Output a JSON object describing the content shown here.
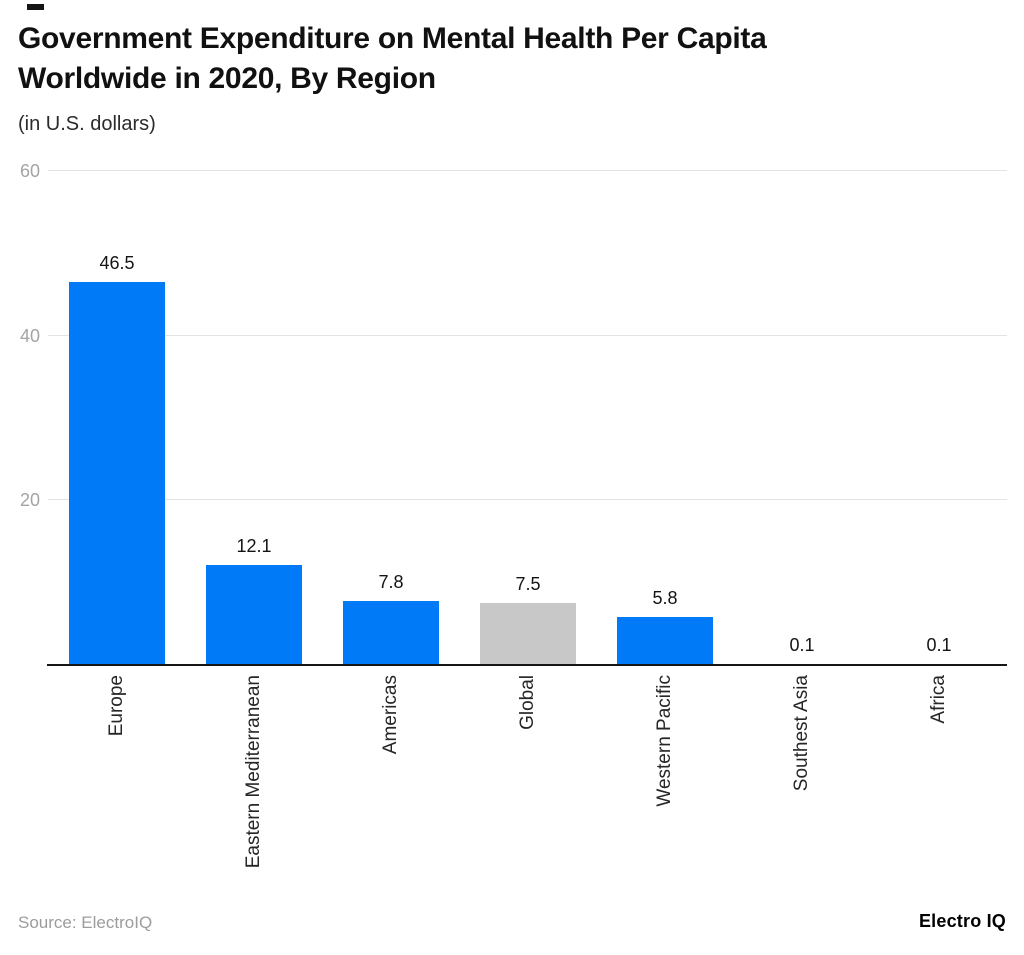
{
  "header": {
    "title_line1": "Government Expenditure on Mental Health Per Capita",
    "title_line2": "Worldwide in 2020, By Region",
    "subtitle": "(in U.S. dollars)"
  },
  "chart_data": {
    "type": "bar",
    "title": "Government Expenditure on Mental Health Per Capita Worldwide in 2020, By Region",
    "subtitle": "(in U.S. dollars)",
    "categories": [
      "Europe",
      "Eastern Mediterranean",
      "Americas",
      "Global",
      "Western Pacific",
      "Southest Asia",
      "Africa"
    ],
    "values": [
      46.5,
      12.1,
      7.8,
      7.5,
      5.8,
      0.1,
      0.1
    ],
    "value_labels": [
      "46.5",
      "12.1",
      "7.8",
      "7.5",
      "5.8",
      "0.1",
      "0.1"
    ],
    "bar_colors": [
      "#007af7",
      "#007af7",
      "#007af7",
      "#c8c8c8",
      "#007af7",
      "#007af7",
      "#007af7"
    ],
    "xlabel": "",
    "ylabel": "",
    "y_ticks": [
      20,
      40,
      60
    ],
    "ylim": [
      0,
      60
    ],
    "grid": "horizontal",
    "legend": "none",
    "x_label_orientation": "vertical-bottom-to-top"
  },
  "colors": {
    "bar_blue": "#007af7",
    "bar_gray": "#c8c8c8",
    "gridline": "#e3e3e3",
    "axis_line": "#161616",
    "tick_label": "#a4a4a4",
    "title_text": "#111111"
  },
  "footer": {
    "source": "Source: ElectroIQ",
    "brand": "Electro IQ"
  }
}
